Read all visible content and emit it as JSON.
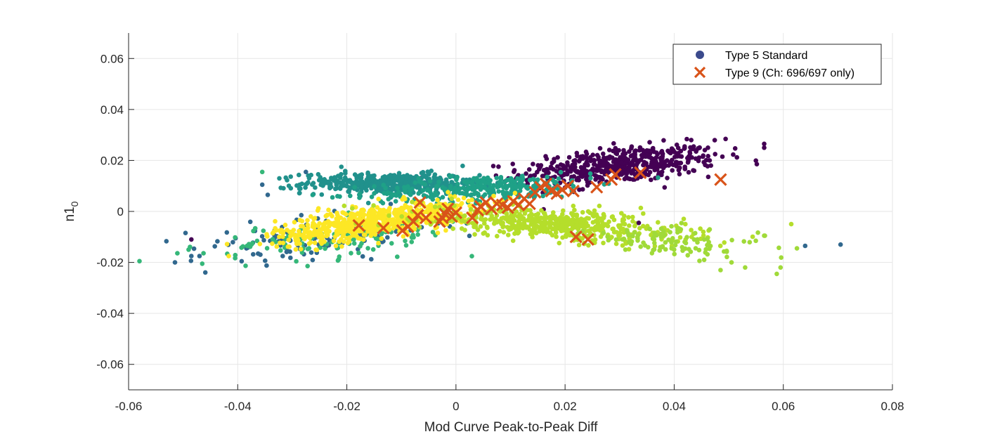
{
  "chart_data": {
    "type": "scatter",
    "xlabel": "Mod Curve Peak-to-Peak Diff",
    "ylabel": "n1",
    "ylabel_sub": "0",
    "xlim": [
      -0.06,
      0.08
    ],
    "ylim": [
      -0.07,
      0.07
    ],
    "xticks": [
      -0.06,
      -0.04,
      -0.02,
      0,
      0.02,
      0.04,
      0.06,
      0.08
    ],
    "xtick_labels": [
      "-0.06",
      "-0.04",
      "-0.02",
      "0",
      "0.02",
      "0.04",
      "0.06",
      "0.08"
    ],
    "yticks": [
      -0.06,
      -0.04,
      -0.02,
      0,
      0.02,
      0.04,
      0.06
    ],
    "ytick_labels": [
      "-0.06",
      "-0.04",
      "-0.02",
      "0",
      "0.02",
      "0.04",
      "0.06"
    ],
    "grid": true,
    "legend_position": "top-right",
    "legend": [
      {
        "label": "Type 5 Standard",
        "marker": "circle",
        "color": "#3b4a8c"
      },
      {
        "label": "Type 9 (Ch: 696/697 only)",
        "marker": "x",
        "color": "#d95319"
      }
    ],
    "series": [
      {
        "name": "Type 5 Standard",
        "marker": "circle",
        "clusters": [
          {
            "color": "#440154",
            "center": [
              0.03,
              0.018
            ],
            "spread": [
              0.009,
              0.0035
            ],
            "count": 500,
            "slope": 0.18
          },
          {
            "color": "#21918c",
            "center": [
              -0.012,
              0.011
            ],
            "spread": [
              0.008,
              0.002
            ],
            "count": 450,
            "slope": 0.0
          },
          {
            "color": "#1fa187",
            "center": [
              0.005,
              0.009
            ],
            "spread": [
              0.01,
              0.0025
            ],
            "count": 300,
            "slope": 0.1
          },
          {
            "color": "#31688e",
            "center": [
              -0.025,
              -0.01
            ],
            "spread": [
              0.012,
              0.004
            ],
            "count": 120,
            "slope": 0.2
          },
          {
            "color": "#35b779",
            "center": [
              -0.022,
              -0.011
            ],
            "spread": [
              0.012,
              0.004
            ],
            "count": 120,
            "slope": 0.2
          },
          {
            "color": "#fde725",
            "center": [
              -0.015,
              -0.004
            ],
            "spread": [
              0.009,
              0.003
            ],
            "count": 650,
            "slope": 0.3
          },
          {
            "color": "#b5de2b",
            "center": [
              0.018,
              -0.005
            ],
            "spread": [
              0.012,
              0.003
            ],
            "count": 550,
            "slope": -0.15
          },
          {
            "color": "#a0da39",
            "center": [
              0.04,
              -0.012
            ],
            "spread": [
              0.008,
              0.003
            ],
            "count": 100,
            "slope": -0.2
          }
        ],
        "outliers": [
          {
            "x": -0.058,
            "y": -0.0195,
            "color": "#35b779"
          },
          {
            "x": -0.0515,
            "y": -0.02,
            "color": "#31688e"
          },
          {
            "x": -0.049,
            "y": -0.015,
            "color": "#35b779"
          },
          {
            "x": -0.0485,
            "y": -0.0175,
            "color": "#31688e"
          },
          {
            "x": -0.0485,
            "y": -0.011,
            "color": "#440154"
          },
          {
            "x": -0.0465,
            "y": -0.0205,
            "color": "#35b779"
          },
          {
            "x": -0.0355,
            "y": 0.0155,
            "color": "#35b779"
          },
          {
            "x": -0.0355,
            "y": 0.0105,
            "color": "#31688e"
          },
          {
            "x": -0.0345,
            "y": 0.0065,
            "color": "#31688e"
          },
          {
            "x": -0.0275,
            "y": 0.0155,
            "color": "#31688e"
          },
          {
            "x": -0.021,
            "y": 0.0175,
            "color": "#21918c"
          },
          {
            "x": 0.0565,
            "y": 0.0265,
            "color": "#440154"
          },
          {
            "x": 0.0565,
            "y": 0.025,
            "color": "#440154"
          },
          {
            "x": 0.0565,
            "y": -0.0095,
            "color": "#a0da39"
          },
          {
            "x": 0.0705,
            "y": -0.013,
            "color": "#31688e"
          },
          {
            "x": 0.064,
            "y": -0.0135,
            "color": "#31688e"
          },
          {
            "x": 0.0625,
            "y": -0.0145,
            "color": "#a0da39"
          },
          {
            "x": 0.0595,
            "y": -0.022,
            "color": "#a0da39"
          },
          {
            "x": 0.0588,
            "y": -0.0245,
            "color": "#a0da39"
          },
          {
            "x": 0.053,
            "y": -0.022,
            "color": "#a0da39"
          },
          {
            "x": 0.0485,
            "y": -0.023,
            "color": "#a0da39"
          },
          {
            "x": 0.0505,
            "y": -0.02,
            "color": "#a0da39"
          },
          {
            "x": 0.0455,
            "y": -0.019,
            "color": "#a0da39"
          },
          {
            "x": 0.0475,
            "y": 0.0225,
            "color": "#440154"
          },
          {
            "x": 0.0465,
            "y": 0.02,
            "color": "#440154"
          },
          {
            "x": 0.0335,
            "y": -0.0045,
            "color": "#440154"
          }
        ]
      },
      {
        "name": "Type 9 (Ch: 696/697 only)",
        "marker": "x",
        "color": "#d95319",
        "points": [
          [
            -0.0178,
            -0.0055
          ],
          [
            -0.0133,
            -0.0065
          ],
          [
            -0.0098,
            -0.0075
          ],
          [
            -0.0088,
            -0.006
          ],
          [
            -0.0078,
            -0.004
          ],
          [
            -0.007,
            -0.0015
          ],
          [
            -0.0066,
            0.0035
          ],
          [
            -0.0055,
            -0.0025
          ],
          [
            -0.003,
            -0.004
          ],
          [
            -0.0025,
            -0.0025
          ],
          [
            -0.002,
            -0.001
          ],
          [
            -0.0015,
            0.001
          ],
          [
            -0.0008,
            -0.002
          ],
          [
            0.0,
            -0.0005
          ],
          [
            0.003,
            -0.0025
          ],
          [
            0.004,
            0.0005
          ],
          [
            0.0045,
            0.002
          ],
          [
            0.0055,
            0.0035
          ],
          [
            0.0065,
            0.001
          ],
          [
            0.0075,
            0.003
          ],
          [
            0.0085,
            0.0025
          ],
          [
            0.0095,
            0.0015
          ],
          [
            0.0105,
            0.004
          ],
          [
            0.0115,
            0.0025
          ],
          [
            0.0125,
            0.005
          ],
          [
            0.0135,
            0.003
          ],
          [
            0.0145,
            0.0075
          ],
          [
            0.0155,
            0.0095
          ],
          [
            0.0165,
            0.0108
          ],
          [
            0.0175,
            0.008
          ],
          [
            0.0185,
            0.007
          ],
          [
            0.0195,
            0.0085
          ],
          [
            0.0205,
            0.01
          ],
          [
            0.0215,
            0.008
          ],
          [
            0.022,
            -0.01
          ],
          [
            0.0242,
            -0.011
          ],
          [
            0.0258,
            0.0095
          ],
          [
            0.0285,
            0.0125
          ],
          [
            0.0292,
            0.0145
          ],
          [
            0.0338,
            0.0152
          ],
          [
            0.0485,
            0.0125
          ]
        ]
      }
    ]
  }
}
